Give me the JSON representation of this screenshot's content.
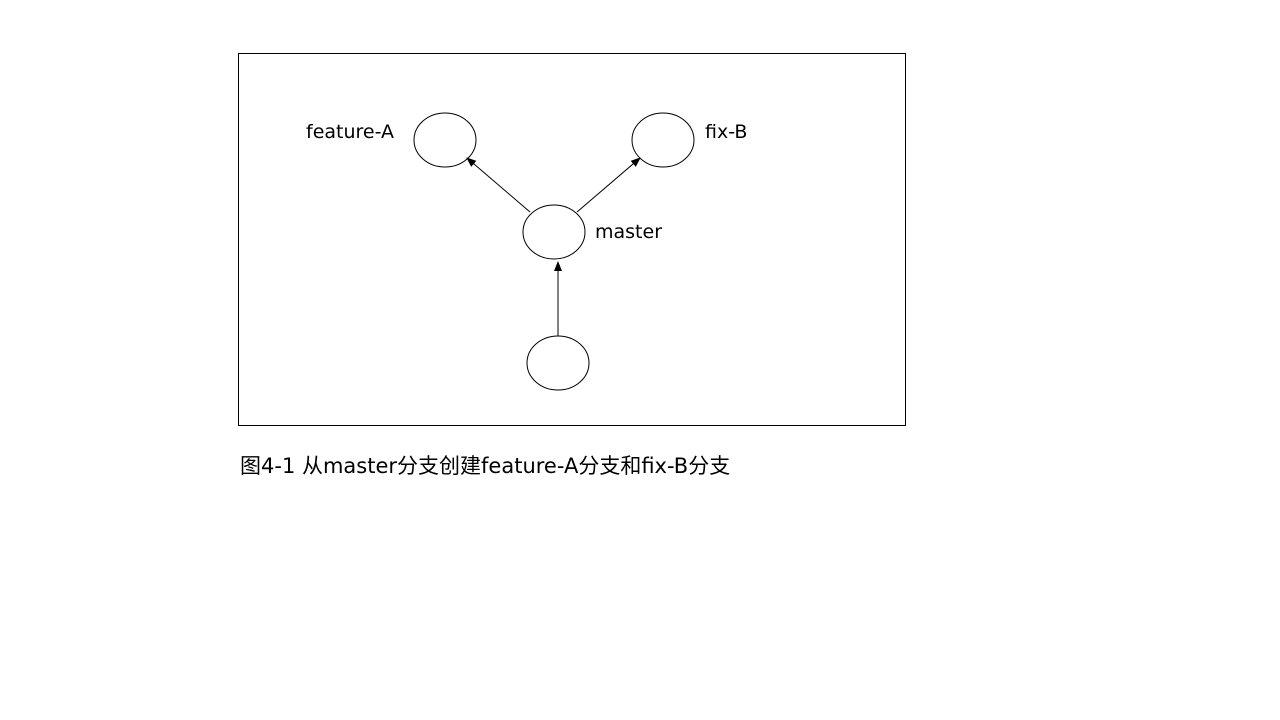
{
  "diagram": {
    "labels": {
      "feature_a": "feature-A",
      "fix_b": "fix-B",
      "master": "master"
    },
    "caption": "图4-1 从master分支创建feature-A分支和fix-B分支",
    "colors": {
      "stroke": "#000000",
      "background": "#ffffff"
    }
  }
}
